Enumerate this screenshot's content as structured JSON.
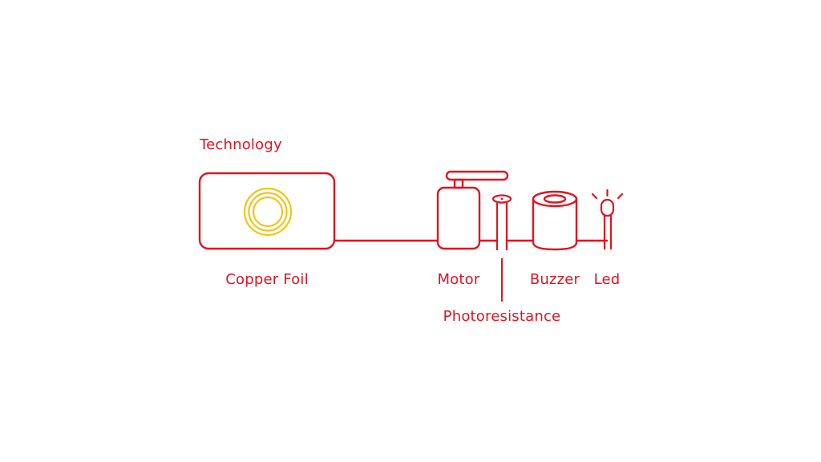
{
  "title": "Technology",
  "components": {
    "copper_foil": {
      "label": "Copper Foil"
    },
    "motor": {
      "label": "Motor"
    },
    "photoresistance": {
      "label": "Photoresistance"
    },
    "buzzer": {
      "label": "Buzzer"
    },
    "led": {
      "label": "Led"
    }
  },
  "colors": {
    "line": "#e1131f",
    "text": "#e1131f",
    "coil": "#f2c41a",
    "background": "#ffffff"
  }
}
